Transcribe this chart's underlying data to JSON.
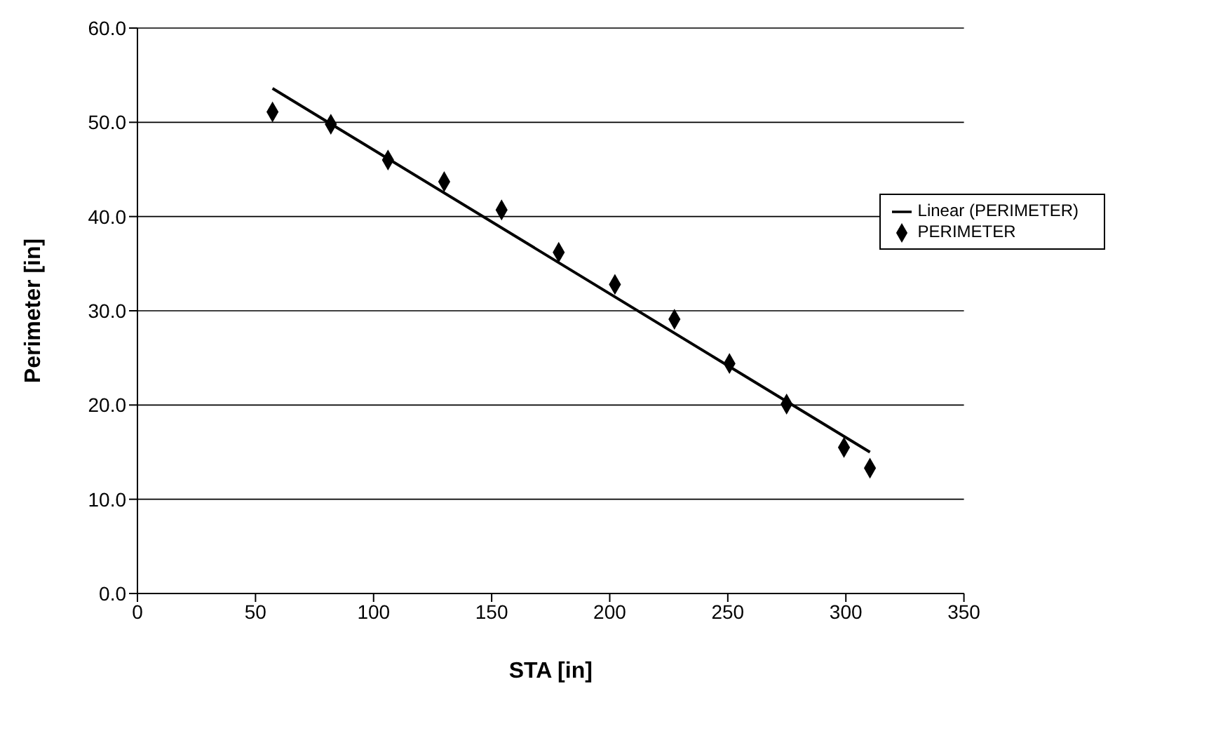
{
  "chart_data": {
    "type": "scatter",
    "xlabel": "STA [in]",
    "ylabel": "Perimeter [in]",
    "xlim": [
      0,
      350
    ],
    "xticks": [
      0,
      50,
      100,
      150,
      200,
      250,
      300,
      350
    ],
    "ylim": [
      0,
      60
    ],
    "yticks": [
      {
        "value": 0,
        "label": "0.0"
      },
      {
        "value": 10,
        "label": "10.0"
      },
      {
        "value": 20,
        "label": "20.0"
      },
      {
        "value": 30,
        "label": "30.0"
      },
      {
        "value": 40,
        "label": "40.0"
      },
      {
        "value": 50,
        "label": "50.0"
      },
      {
        "value": 60,
        "label": "60.0"
      }
    ],
    "grid": "y",
    "legend": "right",
    "marker": "diamond",
    "series": [
      {
        "name": "PERIMETER",
        "color": "#000000",
        "x": [
          57.2,
          81.9,
          106.1,
          129.9,
          154.2,
          178.4,
          202.2,
          227.4,
          250.7,
          274.9,
          299.2,
          310.2
        ],
        "values": [
          51.1,
          49.8,
          46.0,
          43.7,
          40.7,
          36.2,
          32.8,
          29.1,
          24.4,
          20.1,
          15.5,
          13.3
        ]
      },
      {
        "name": "Linear (PERIMETER)",
        "type": "line",
        "color": "#000000",
        "marker": "none",
        "line_style": "solid",
        "x": [
          57.2,
          310.2
        ],
        "values": [
          53.6,
          15.0
        ]
      }
    ]
  }
}
